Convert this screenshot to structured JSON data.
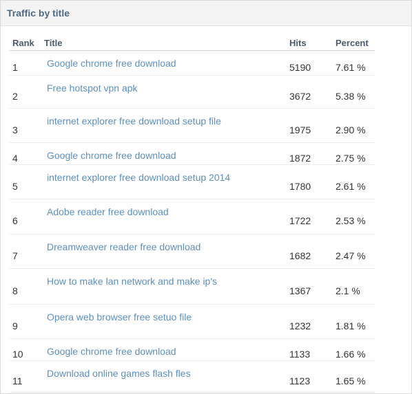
{
  "panel": {
    "title": "Traffic by title"
  },
  "table": {
    "headers": {
      "rank": "Rank",
      "title": "Title",
      "hits": "Hits",
      "percent": "Percent"
    },
    "rows": [
      {
        "rank": "1",
        "title": "Google chrome free download",
        "hits": "5190",
        "percent": "7.61 %"
      },
      {
        "rank": "2",
        "title": "Free hotspot vpn apk",
        "hits": "3672",
        "percent": "5.38 %"
      },
      {
        "rank": "3",
        "title": "internet explorer free download setup file",
        "hits": "1975",
        "percent": "2.90 %"
      },
      {
        "rank": "4",
        "title": "Google chrome free download",
        "hits": "1872",
        "percent": "2.75 %"
      },
      {
        "rank": "5",
        "title": "internet explorer free download setup 2014",
        "hits": "1780",
        "percent": "2.61 %"
      },
      {
        "rank": "6",
        "title": "Adobe reader free download",
        "hits": "1722",
        "percent": "2.53 %"
      },
      {
        "rank": "7",
        "title": "Dreamweaver reader free download",
        "hits": "1682",
        "percent": "2.47 %"
      },
      {
        "rank": "8",
        "title": "How to make lan network and make ip's",
        "hits": "1367",
        "percent": "2.1 %"
      },
      {
        "rank": "9",
        "title": "Opera web browser free setuo file",
        "hits": "1232",
        "percent": "1.81 %"
      },
      {
        "rank": "10",
        "title": "Google chrome free download",
        "hits": "1133",
        "percent": "1.66 %"
      },
      {
        "rank": "11",
        "title": "Download online games flash fles",
        "hits": "1123",
        "percent": "1.65 %"
      }
    ]
  }
}
